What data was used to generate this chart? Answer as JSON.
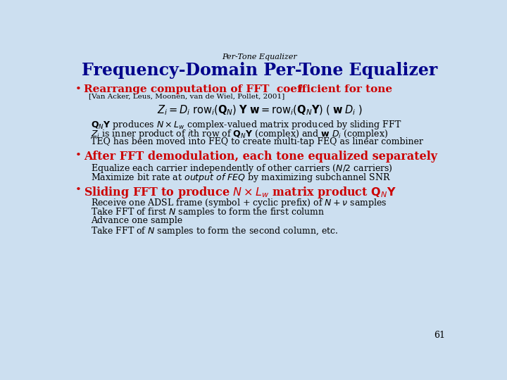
{
  "bg_color": "#ccdff0",
  "header_text": "Per-Tone Equalizer",
  "title": "Frequency-Domain Per-Tone Equalizer",
  "title_color": "#00008B",
  "page_number": "61",
  "bullet_color": "#CC0000",
  "body_color": "#000000",
  "ref": "[Van Acker, Leus, Moonen, van de Wiel, Pollet, 2001]"
}
